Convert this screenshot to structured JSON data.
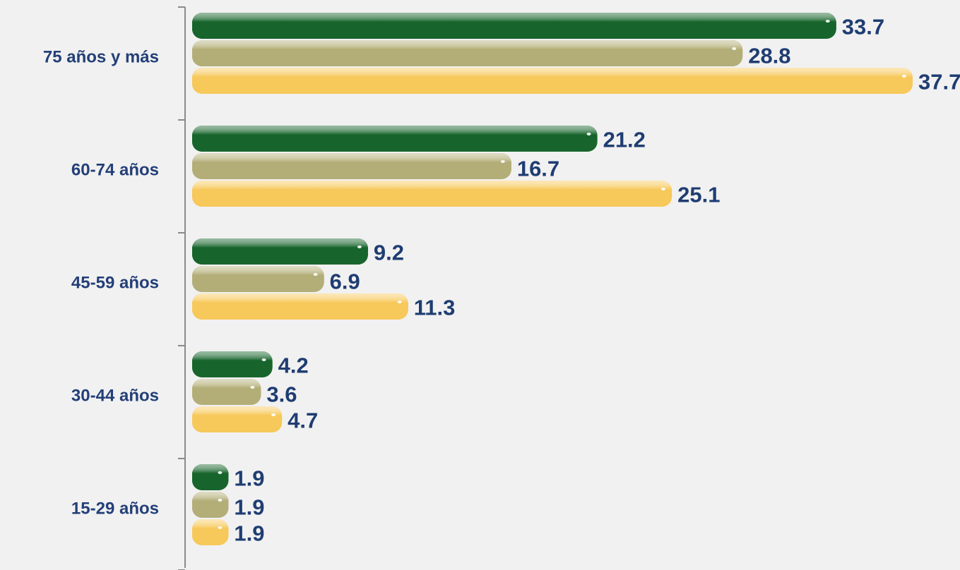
{
  "chart_data": {
    "type": "hbar",
    "categories": [
      "75 años y más",
      "60-74 años",
      "45-59 años",
      "30-44 años",
      "15-29 años"
    ],
    "series": [
      {
        "color": "#17652c",
        "values": [
          33.7,
          21.2,
          9.2,
          4.2,
          1.9
        ]
      },
      {
        "color": "#b3ae78",
        "values": [
          28.8,
          16.7,
          6.9,
          3.6,
          1.9
        ]
      },
      {
        "color": "#f7c85a",
        "values": [
          37.7,
          25.1,
          11.3,
          4.7,
          1.9
        ]
      }
    ]
  }
}
